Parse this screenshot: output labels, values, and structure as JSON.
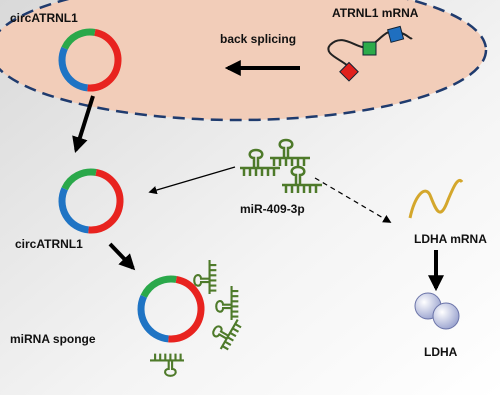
{
  "labels": {
    "circ_top": "circATRNL1",
    "back_splicing": "back splicing",
    "atrnl1_mrna": "ATRNL1 mRNA",
    "circ_mid": "circATRNL1",
    "mirna": "miR-409-3p",
    "ldha_mrna": "LDHA mRNA",
    "sponge": "miRNA sponge",
    "ldha": "LDHA"
  }
}
